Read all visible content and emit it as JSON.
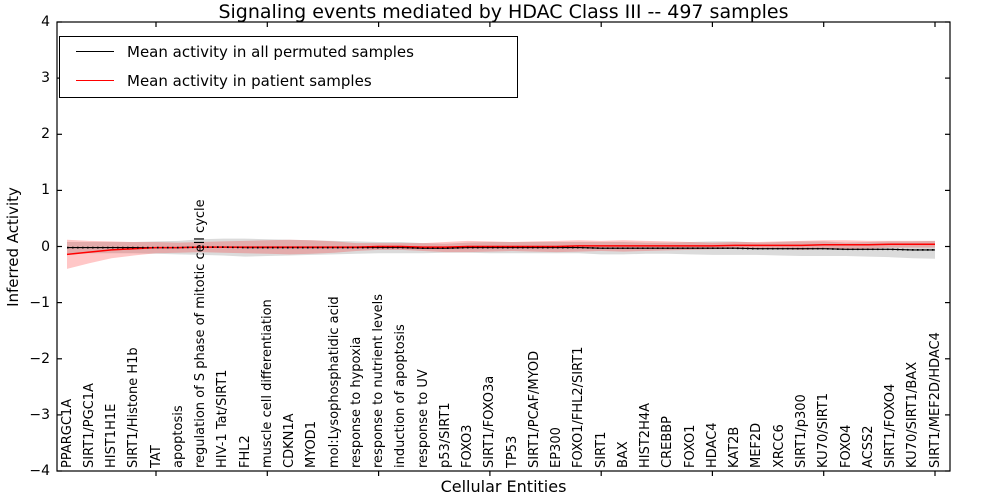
{
  "title": "Signaling events mediated by HDAC Class III -- 497 samples",
  "legend": {
    "entries": [
      {
        "label": "Mean activity in all permuted samples",
        "color": "#000000"
      },
      {
        "label": "Mean activity in patient samples",
        "color": "#ff0000"
      }
    ]
  },
  "axes": {
    "x_label": "Cellular Entities",
    "y_label": "Inferred Activity",
    "y_tick_labels": [
      "4",
      "3",
      "2",
      "1",
      "0",
      "−1",
      "−2",
      "−3",
      "−4"
    ],
    "y_tick_values": [
      4,
      3,
      2,
      1,
      0,
      -1,
      -2,
      -3,
      -4
    ]
  },
  "chart_data": {
    "type": "line",
    "title": "Signaling events mediated by HDAC Class III -- 497 samples",
    "xlabel": "Cellular Entities",
    "ylabel": "Inferred Activity",
    "ylim": [
      -4,
      4
    ],
    "grid": false,
    "legend_position": "upper left",
    "x_major_tick_every": 5,
    "categories": [
      "PPARGC1A",
      "SIRT1/PGC1A",
      "HIST1H1E",
      "SIRT1/Histone H1b",
      "TAT",
      "apoptosis",
      "regulation of S phase of mitotic cell cycle",
      "HIV-1 Tat/SIRT1",
      "FHL2",
      "muscle cell differentiation",
      "CDKN1A",
      "MYOD1",
      "mol:Lysophosphatidic acid",
      "response to hypoxia",
      "response to nutrient levels",
      "induction of apoptosis",
      "response to UV",
      "p53/SIRT1",
      "FOXO3",
      "SIRT1/FOXO3a",
      "TP53",
      "SIRT1/PCAF/MYOD",
      "EP300",
      "FOXO1/FHL2/SIRT1",
      "SIRT1",
      "BAX",
      "HIST2H4A",
      "CREBBP",
      "FOXO1",
      "HDAC4",
      "KAT2B",
      "MEF2D",
      "XRCC6",
      "SIRT1/p300",
      "KU70/SIRT1",
      "FOXO4",
      "ACSS2",
      "SIRT1/FOXO4",
      "KU70/SIRT1/BAX",
      "SIRT1/MEF2D/HDAC4"
    ],
    "series": [
      {
        "name": "Mean activity in all permuted samples",
        "color": "#000000",
        "line_style": "solid-with-dots",
        "band_color": "#999999",
        "band_opacity": 0.35,
        "values": [
          -0.02,
          -0.02,
          -0.02,
          -0.02,
          -0.02,
          -0.02,
          -0.01,
          -0.01,
          -0.02,
          -0.02,
          -0.02,
          -0.02,
          -0.02,
          -0.02,
          -0.02,
          -0.02,
          -0.03,
          -0.03,
          -0.02,
          -0.02,
          -0.02,
          -0.02,
          -0.02,
          -0.02,
          -0.03,
          -0.03,
          -0.03,
          -0.03,
          -0.03,
          -0.03,
          -0.03,
          -0.04,
          -0.04,
          -0.04,
          -0.04,
          -0.05,
          -0.05,
          -0.05,
          -0.06,
          -0.06
        ],
        "band_halfwidth": [
          0.1,
          0.1,
          0.1,
          0.1,
          0.11,
          0.12,
          0.14,
          0.15,
          0.16,
          0.15,
          0.14,
          0.13,
          0.12,
          0.11,
          0.1,
          0.1,
          0.09,
          0.08,
          0.09,
          0.1,
          0.1,
          0.1,
          0.1,
          0.1,
          0.11,
          0.11,
          0.1,
          0.1,
          0.11,
          0.12,
          0.12,
          0.11,
          0.12,
          0.13,
          0.13,
          0.12,
          0.13,
          0.14,
          0.15,
          0.16
        ]
      },
      {
        "name": "Mean activity in patient samples",
        "color": "#ff0000",
        "line_style": "solid",
        "band_color": "#ff0000",
        "band_opacity": 0.22,
        "values": [
          -0.14,
          -0.1,
          -0.06,
          -0.04,
          -0.02,
          -0.02,
          -0.01,
          -0.01,
          -0.01,
          -0.01,
          -0.01,
          -0.01,
          -0.01,
          -0.01,
          0.0,
          0.0,
          -0.01,
          -0.01,
          0.0,
          0.0,
          0.0,
          0.0,
          0.0,
          0.01,
          0.01,
          0.01,
          0.01,
          0.01,
          0.01,
          0.01,
          0.02,
          0.02,
          0.02,
          0.02,
          0.03,
          0.03,
          0.03,
          0.04,
          0.04,
          0.04
        ],
        "band_halfwidth": [
          0.26,
          0.2,
          0.15,
          0.12,
          0.1,
          0.09,
          0.09,
          0.1,
          0.11,
          0.12,
          0.13,
          0.12,
          0.1,
          0.07,
          0.06,
          0.06,
          0.07,
          0.09,
          0.1,
          0.09,
          0.08,
          0.09,
          0.1,
          0.1,
          0.09,
          0.1,
          0.09,
          0.08,
          0.07,
          0.06,
          0.06,
          0.06,
          0.07,
          0.08,
          0.08,
          0.08,
          0.07,
          0.06,
          0.06,
          0.06
        ]
      }
    ]
  }
}
